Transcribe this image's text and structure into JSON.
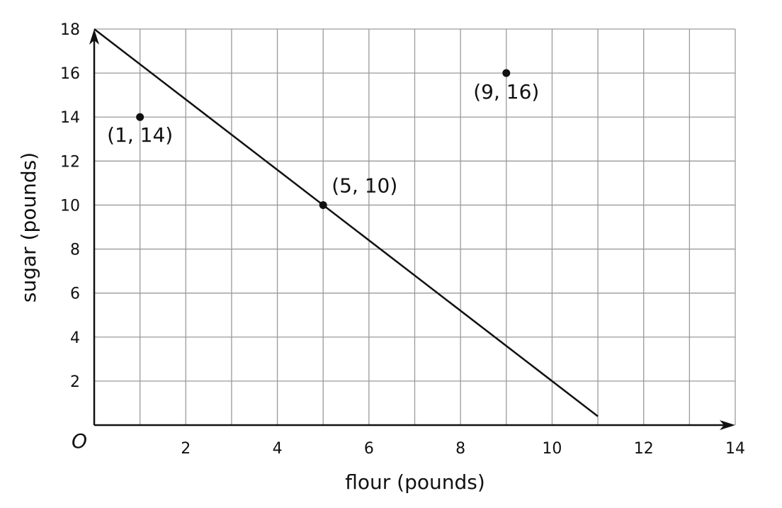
{
  "chart_data": {
    "type": "scatter",
    "title": "",
    "xlabel": "flour (pounds)",
    "ylabel": "sugar (pounds)",
    "origin_label": "O",
    "xlim": [
      0,
      14
    ],
    "ylim": [
      0,
      18
    ],
    "x_grid_step": 1,
    "y_grid_step": 2,
    "grid": true,
    "x_ticks": [
      2,
      4,
      6,
      8,
      10,
      12,
      14
    ],
    "y_ticks": [
      2,
      4,
      6,
      8,
      10,
      12,
      14,
      16,
      18
    ],
    "line": {
      "x": [
        0,
        11
      ],
      "y": [
        18,
        0.4
      ]
    },
    "points": [
      {
        "x": 1,
        "y": 14,
        "label": "(1, 14)"
      },
      {
        "x": 5,
        "y": 10,
        "label": "(5, 10)"
      },
      {
        "x": 9,
        "y": 16,
        "label": "(9, 16)"
      }
    ],
    "colors": {
      "grid": "#9a9a9a",
      "axis": "#111111",
      "line": "#111111",
      "point": "#111111"
    }
  }
}
